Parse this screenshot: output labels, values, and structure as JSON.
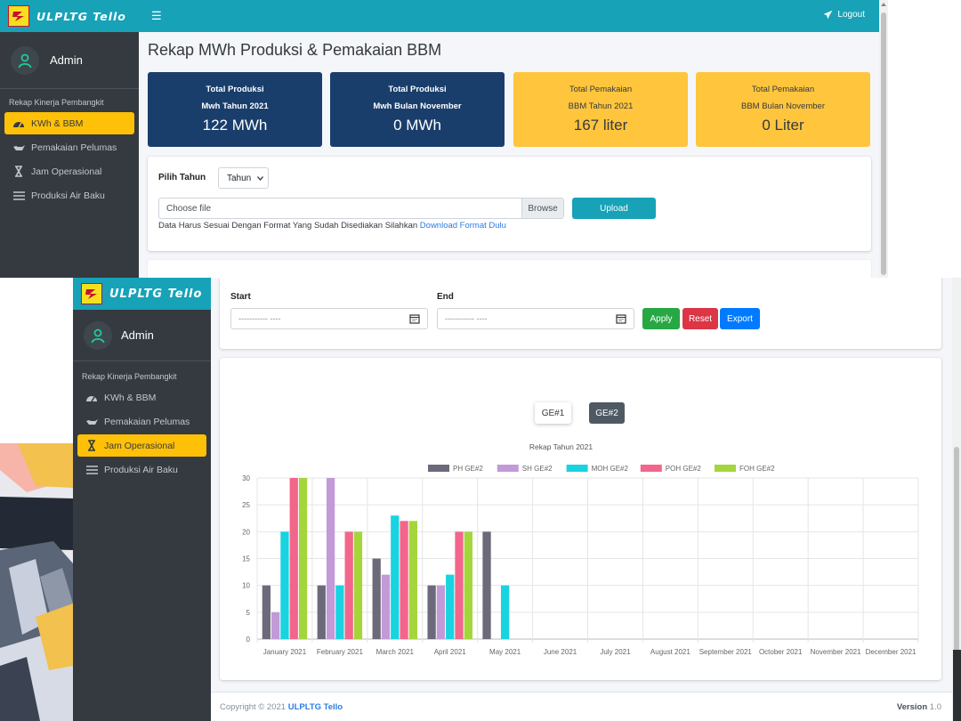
{
  "back_window": {
    "brand": "ULPLTG Tello",
    "logout": "Logout",
    "admin": "Admin",
    "menu_header": "Rekap Kinerja Pembangkit",
    "menu": [
      {
        "label": "KWh & BBM",
        "icon": "tachometer-icon",
        "active": true
      },
      {
        "label": "Pemakaian Pelumas",
        "icon": "oil-can-icon",
        "active": false
      },
      {
        "label": "Jam Operasional",
        "icon": "hourglass-icon",
        "active": false
      },
      {
        "label": "Produksi Air Baku",
        "icon": "bars-icon",
        "active": false
      }
    ],
    "page_title": "Rekap MWh Produksi & Pemakaian BBM",
    "stats": [
      {
        "line1": "Total Produksi",
        "line2": "Mwh Tahun 2021",
        "value": "122 MWh",
        "color": "#1a3e6b"
      },
      {
        "line1": "Total Produksi",
        "line2": "Mwh Bulan November",
        "value": "0 MWh",
        "color": "#1a3e6b"
      },
      {
        "line1": "Total Pemakaian",
        "line2": "BBM Tahun 2021",
        "value": "167 liter",
        "color": "#ffc53d"
      },
      {
        "line1": "Total Pemakaian",
        "line2": "BBM Bulan November",
        "value": "0 Liter",
        "color": "#ffc53d"
      }
    ],
    "pilih_tahun_label": "Pilih Tahun",
    "tahun_select": "Tahun",
    "file_placeholder": "Choose file",
    "browse_label": "Browse",
    "upload_label": "Upload",
    "hint_text": "Data Harus Sesuai Dengan Format Yang Sudah Disediakan Silahkan ",
    "hint_link": "Download Format Dulu"
  },
  "front_window": {
    "brand": "ULPLTG Tello",
    "admin": "Admin",
    "menu_header": "Rekap Kinerja Pembangkit",
    "menu": [
      {
        "label": "KWh & BBM",
        "icon": "tachometer-icon",
        "active": false
      },
      {
        "label": "Pemakaian Pelumas",
        "icon": "oil-can-icon",
        "active": false
      },
      {
        "label": "Jam Operasional",
        "icon": "hourglass-icon",
        "active": true
      },
      {
        "label": "Produksi Air Baku",
        "icon": "bars-icon",
        "active": false
      }
    ],
    "filter": {
      "start_label": "Start",
      "end_label": "End",
      "date_placeholder": "----------- ----",
      "apply": "Apply",
      "reset": "Reset",
      "export": "Export",
      "apply_color": "#28a745",
      "reset_color": "#dc3545",
      "export_color": "#007bff"
    },
    "ge_buttons": [
      "GE#1",
      "GE#2"
    ],
    "footer": {
      "copyright_prefix": "Copyright © 2021 ",
      "copyright_brand": "ULPLTG Tello",
      "version_label": "Version",
      "version_value": "1.0"
    }
  },
  "chart_data": {
    "type": "bar",
    "title": "Rekap  Tahun 2021",
    "categories": [
      "January 2021",
      "February 2021",
      "March 2021",
      "April 2021",
      "May 2021",
      "June 2021",
      "July 2021",
      "August 2021",
      "September 2021",
      "October 2021",
      "November 2021",
      "December 2021"
    ],
    "series": [
      {
        "name": "PH GE#2",
        "color": "#6c6a7a",
        "values": [
          10,
          10,
          15,
          10,
          20,
          0,
          0,
          0,
          0,
          0,
          0,
          0
        ]
      },
      {
        "name": "SH GE#2",
        "color": "#c29ad8",
        "values": [
          5,
          30,
          12,
          10,
          0,
          0,
          0,
          0,
          0,
          0,
          0,
          0
        ]
      },
      {
        "name": "MOH GE#2",
        "color": "#19d3e0",
        "values": [
          20,
          10,
          23,
          12,
          10,
          0,
          0,
          0,
          0,
          0,
          0,
          0
        ]
      },
      {
        "name": "POH GE#2",
        "color": "#f2668b",
        "values": [
          30,
          20,
          22,
          20,
          0,
          0,
          0,
          0,
          0,
          0,
          0,
          0
        ]
      },
      {
        "name": "FOH GE#2",
        "color": "#a5d53d",
        "values": [
          30,
          20,
          22,
          20,
          0,
          0,
          0,
          0,
          0,
          0,
          0,
          0
        ]
      }
    ],
    "ylim": [
      0,
      30
    ],
    "yticks": [
      0,
      5,
      10,
      15,
      20,
      25,
      30
    ],
    "legend": "top",
    "grid": true
  }
}
